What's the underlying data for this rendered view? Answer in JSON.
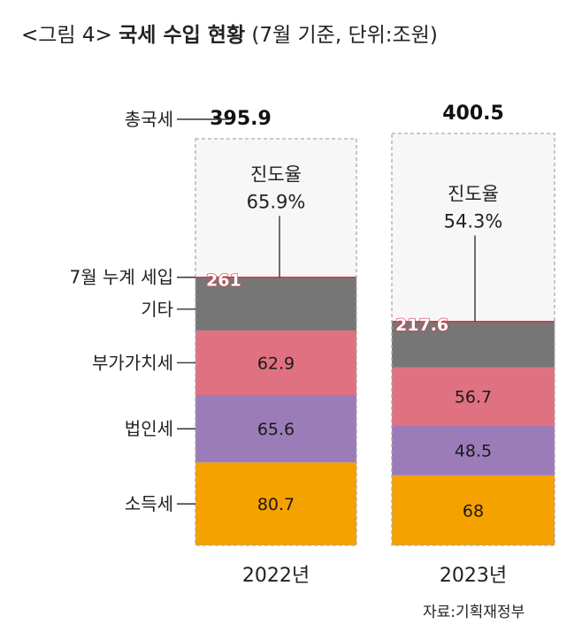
{
  "title": {
    "prefix": "<그림 4>",
    "main": "국세 수입 현황",
    "unit": "(7월 기준, 단위:조원)"
  },
  "source": "자료:기획재정부",
  "colors": {
    "income_tax": "#f5a100",
    "corporate_tax": "#9b7cb8",
    "vat": "#e07181",
    "other": "#767676",
    "background": "#f7f7f7",
    "border": "#aaaaaa",
    "accent_line": "#d33a4b"
  },
  "chart_data": {
    "type": "bar",
    "stacked": true,
    "categories": [
      "2022년",
      "2023년"
    ],
    "series": [
      {
        "name": "소득세",
        "values": [
          80.7,
          68
        ],
        "labels": [
          "80.7",
          "68"
        ]
      },
      {
        "name": "법인세",
        "values": [
          65.6,
          48.5
        ],
        "labels": [
          "65.6",
          "48.5"
        ]
      },
      {
        "name": "부가가치세",
        "values": [
          62.9,
          56.7
        ],
        "labels": [
          "62.9",
          "56.7"
        ]
      },
      {
        "name": "기타",
        "values": [
          51.8,
          44.4
        ]
      }
    ],
    "cumulative": {
      "name": "7월 누계 세입",
      "values": [
        261,
        217.6
      ],
      "labels": [
        "261",
        "217.6"
      ]
    },
    "total": {
      "name": "총국세",
      "values": [
        395.9,
        400.5
      ],
      "labels": [
        "395.9",
        "400.5"
      ]
    },
    "progress": {
      "name": "진도율",
      "values": [
        65.9,
        54.3
      ],
      "labels": [
        "65.9%",
        "54.3%"
      ]
    },
    "title": "국세 수입 현황",
    "unit": "조원"
  }
}
